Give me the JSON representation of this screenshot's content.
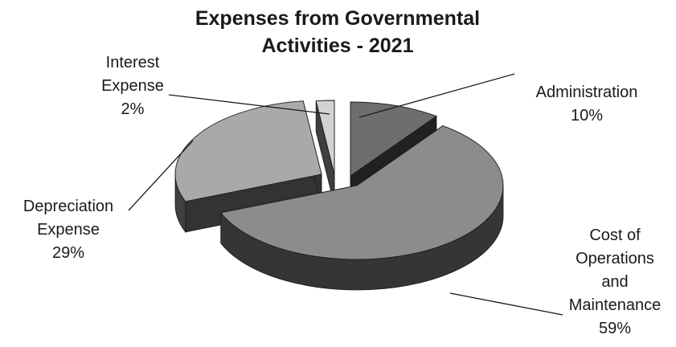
{
  "chart_data": {
    "type": "pie",
    "title_lines": [
      "Expenses from Governmental",
      "Activities - 2021"
    ],
    "slices": [
      {
        "label_lines": [
          "Administration"
        ],
        "value": 10,
        "pct_label": "10%",
        "color": "#6e6e6e"
      },
      {
        "label_lines": [
          "Cost of",
          "Operations",
          "and",
          "Maintenance"
        ],
        "value": 59,
        "pct_label": "59%",
        "color": "#8c8c8c"
      },
      {
        "label_lines": [
          "Depreciation",
          "Expense"
        ],
        "value": 29,
        "pct_label": "29%",
        "color": "#a9a9a9"
      },
      {
        "label_lines": [
          "Interest",
          "Expense"
        ],
        "value": 2,
        "pct_label": "2%",
        "color": "#d2d2d2"
      }
    ],
    "style": "3D exploded pie with leader lines"
  }
}
